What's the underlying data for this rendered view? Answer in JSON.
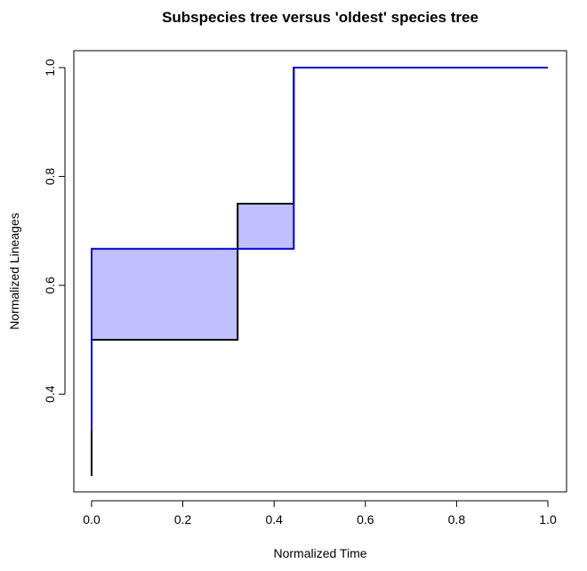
{
  "chart_data": {
    "type": "line",
    "title": "Subspecies tree versus 'oldest' species tree",
    "xlabel": "Normalized Time",
    "ylabel": "Normalized Lineages",
    "xlim": [
      0.0,
      1.0
    ],
    "ylim": [
      0.25,
      1.0
    ],
    "x_ticks": [
      "0.0",
      "0.2",
      "0.4",
      "0.6",
      "0.8",
      "1.0"
    ],
    "y_ticks": [
      "0.4",
      "0.6",
      "0.8",
      "1.0"
    ],
    "grid": false,
    "series": [
      {
        "color": "#000000",
        "step": true,
        "x": [
          0.0,
          0.0,
          0.32,
          0.32,
          0.443,
          0.443,
          1.0
        ],
        "y": [
          0.25,
          0.5,
          0.5,
          0.75,
          0.75,
          1.0,
          1.0
        ]
      },
      {
        "color": "#0000cc",
        "step": true,
        "x": [
          0.0,
          0.0,
          0.443,
          0.443,
          1.0
        ],
        "y": [
          0.333,
          0.667,
          0.667,
          1.0,
          1.0
        ]
      }
    ],
    "fill_between_color": "#c0c0ff"
  }
}
